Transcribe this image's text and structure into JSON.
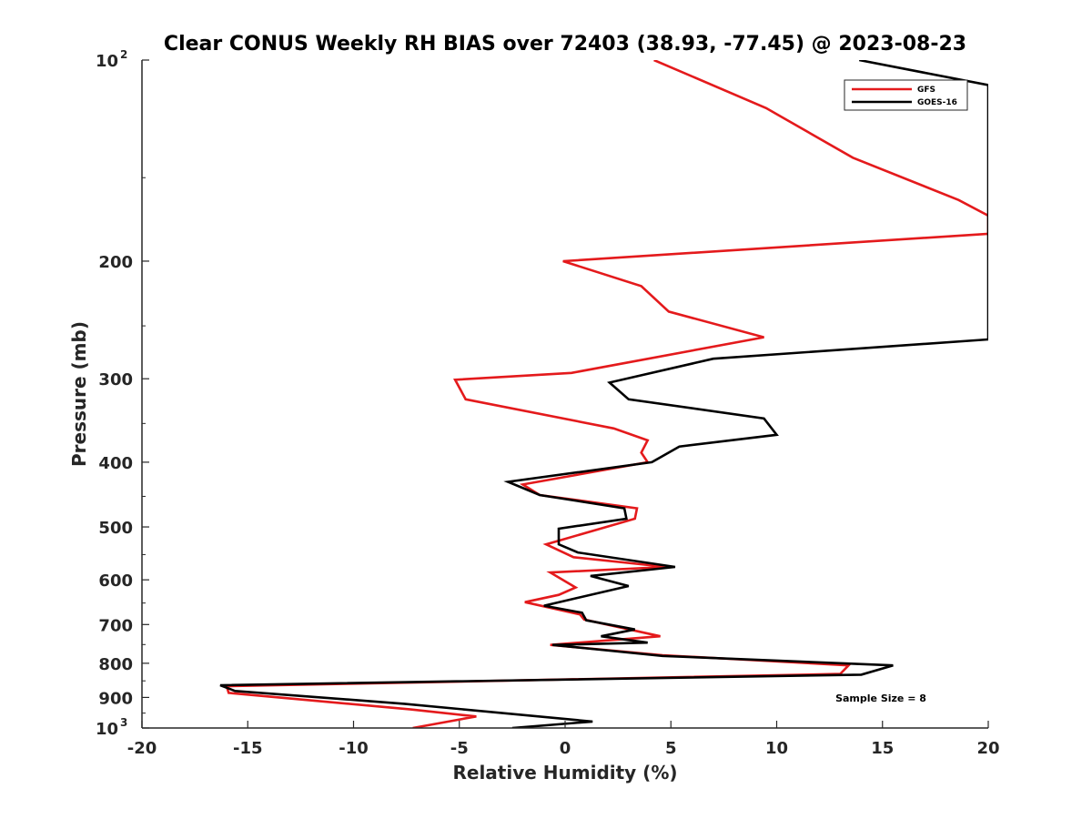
{
  "chart_data": {
    "type": "line",
    "title": "Clear CONUS Weekly RH BIAS over 72403 (38.93, -77.45) @ 2023-08-23",
    "xlabel": "Relative Humidity (%)",
    "ylabel": "Pressure (mb)",
    "xlim": [
      -20,
      20
    ],
    "ylim": [
      100,
      1000
    ],
    "y_scale": "log",
    "y_reversed": true,
    "grid": false,
    "legend_position": "top-right",
    "x_ticks": [
      {
        "value": -20,
        "label": "-20"
      },
      {
        "value": -15,
        "label": "-15"
      },
      {
        "value": -10,
        "label": "-10"
      },
      {
        "value": -5,
        "label": "-5"
      },
      {
        "value": 0,
        "label": "0"
      },
      {
        "value": 5,
        "label": "5"
      },
      {
        "value": 10,
        "label": "10"
      },
      {
        "value": 15,
        "label": "15"
      },
      {
        "value": 20,
        "label": "20"
      }
    ],
    "y_ticks": [
      {
        "value": 100,
        "label": "10",
        "sup": "2"
      },
      {
        "value": 200,
        "label": "200"
      },
      {
        "value": 300,
        "label": "300"
      },
      {
        "value": 400,
        "label": "400"
      },
      {
        "value": 500,
        "label": "500"
      },
      {
        "value": 600,
        "label": "600"
      },
      {
        "value": 700,
        "label": "700"
      },
      {
        "value": 800,
        "label": "800"
      },
      {
        "value": 900,
        "label": "900"
      },
      {
        "value": 1000,
        "label": "10",
        "sup": "3"
      }
    ],
    "series": [
      {
        "name": "GFS",
        "color": "#e41a1c",
        "points": [
          [
            4.2,
            100
          ],
          [
            9.5,
            118
          ],
          [
            13.6,
            140
          ],
          [
            18.6,
            162
          ],
          [
            20.0,
            171
          ],
          [
            20.0,
            182
          ],
          [
            -0.1,
            200
          ],
          [
            3.6,
            218
          ],
          [
            4.9,
            238
          ],
          [
            9.4,
            260
          ],
          [
            0.3,
            294
          ],
          [
            -5.2,
            301
          ],
          [
            -4.7,
            322
          ],
          [
            2.3,
            356
          ],
          [
            3.9,
            371
          ],
          [
            3.6,
            387
          ],
          [
            3.9,
            400
          ],
          [
            -2.0,
            432
          ],
          [
            -1.2,
            448
          ],
          [
            3.4,
            469
          ],
          [
            3.3,
            486
          ],
          [
            -0.9,
            531
          ],
          [
            0.4,
            555
          ],
          [
            4.8,
            574
          ],
          [
            -0.7,
            585
          ],
          [
            0.5,
            616
          ],
          [
            -0.3,
            632
          ],
          [
            -1.9,
            648
          ],
          [
            0.7,
            676
          ],
          [
            0.9,
            688
          ],
          [
            4.5,
            729
          ],
          [
            -0.7,
            751
          ],
          [
            4.6,
            778
          ],
          [
            13.4,
            806
          ],
          [
            13.0,
            830
          ],
          [
            -16.0,
            866
          ],
          [
            -15.9,
            886
          ],
          [
            -7.3,
            938
          ],
          [
            -4.2,
            961
          ],
          [
            -7.2,
            1000
          ]
        ]
      },
      {
        "name": "GOES-16",
        "color": "#000000",
        "points": [
          [
            13.9,
            100
          ],
          [
            20.0,
            109
          ],
          [
            20.0,
            262
          ],
          [
            7.0,
            280
          ],
          [
            2.1,
            304
          ],
          [
            3.0,
            322
          ],
          [
            9.4,
            344
          ],
          [
            10.0,
            364
          ],
          [
            5.4,
            379
          ],
          [
            4.1,
            400
          ],
          [
            -2.7,
            428
          ],
          [
            -1.2,
            448
          ],
          [
            2.8,
            469
          ],
          [
            2.9,
            486
          ],
          [
            -0.3,
            503
          ],
          [
            -0.3,
            531
          ],
          [
            0.6,
            546
          ],
          [
            5.2,
            574
          ],
          [
            1.2,
            592
          ],
          [
            3.0,
            613
          ],
          [
            -1.0,
            656
          ],
          [
            0.8,
            672
          ],
          [
            1.0,
            690
          ],
          [
            3.3,
            712
          ],
          [
            1.7,
            729
          ],
          [
            3.9,
            745
          ],
          [
            -0.6,
            751
          ],
          [
            4.6,
            780
          ],
          [
            15.5,
            806
          ],
          [
            14.0,
            832
          ],
          [
            -16.3,
            863
          ],
          [
            -15.6,
            880
          ],
          [
            -7.6,
            920
          ],
          [
            1.3,
            978
          ],
          [
            -2.5,
            1000
          ]
        ]
      }
    ],
    "legend": [
      {
        "label": "GFS",
        "color": "#e41a1c"
      },
      {
        "label": "GOES-16",
        "color": "#000000"
      }
    ],
    "annotation": "Sample Size = 8"
  }
}
